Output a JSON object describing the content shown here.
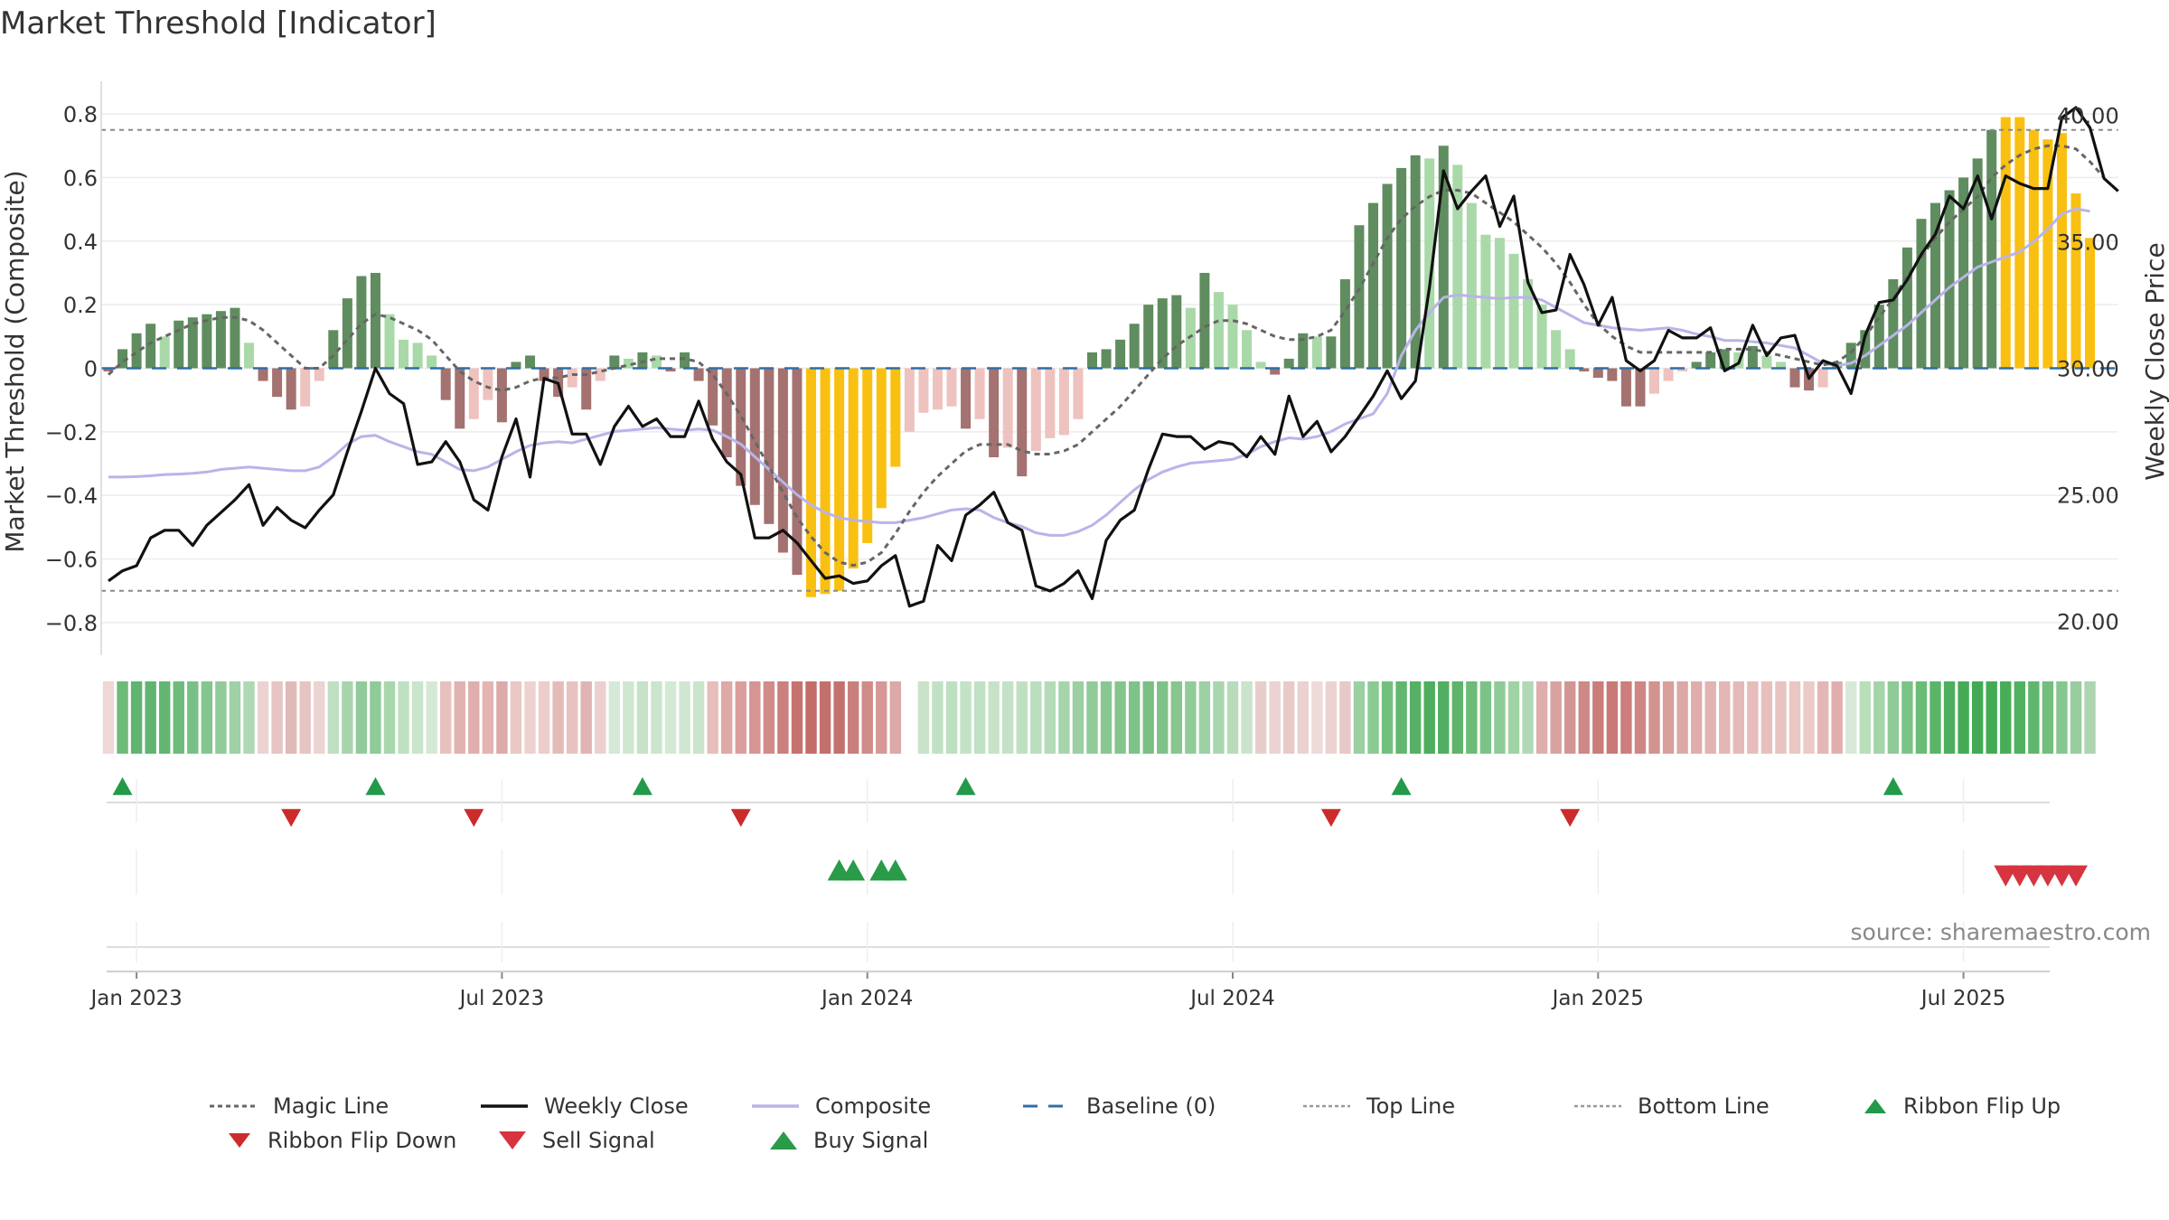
{
  "title": "Market Threshold [Indicator]",
  "source": "source: sharemaestro.com",
  "chart_data": {
    "type": "bar",
    "y_left_label": "Market Threshold (Composite)",
    "y_right_label": "Weekly Close Price",
    "y_left_range": [
      -0.86,
      0.86
    ],
    "y_right_range": [
      19.2,
      40.8
    ],
    "y_left_ticks": [
      {
        "v": 0.8,
        "label": "0.8"
      },
      {
        "v": 0.6,
        "label": "0.6"
      },
      {
        "v": 0.4,
        "label": "0.4"
      },
      {
        "v": 0.2,
        "label": "0.2"
      },
      {
        "v": 0,
        "label": "0"
      },
      {
        "v": -0.2,
        "label": "−0.2"
      },
      {
        "v": -0.4,
        "label": "−0.4"
      },
      {
        "v": -0.6,
        "label": "−0.6"
      },
      {
        "v": -0.8,
        "label": "−0.8"
      }
    ],
    "y_right_ticks": [
      {
        "v": 40,
        "label": "40.00"
      },
      {
        "v": 35,
        "label": "35.00"
      },
      {
        "v": 30,
        "label": "30.00"
      },
      {
        "v": 25,
        "label": "25.00"
      },
      {
        "v": 20,
        "label": "20.00"
      }
    ],
    "x_ticks": [
      "Jan 2023",
      "Jul 2023",
      "Jan 2024",
      "Jul 2024",
      "Jan 2025",
      "Jul 2025"
    ],
    "top_line": 0.75,
    "bottom_line": -0.7,
    "composite_histogram": [
      -0.01,
      0.06,
      0.11,
      0.14,
      0.1,
      0.15,
      0.16,
      0.17,
      0.18,
      0.19,
      0.08,
      -0.04,
      -0.09,
      -0.13,
      -0.12,
      -0.04,
      0.12,
      0.22,
      0.29,
      0.3,
      0.17,
      0.09,
      0.08,
      0.04,
      -0.1,
      -0.19,
      -0.16,
      -0.1,
      -0.17,
      0.02,
      0.04,
      -0.04,
      -0.09,
      -0.06,
      -0.13,
      -0.04,
      0.04,
      0.03,
      0.05,
      0.04,
      -0.01,
      0.05,
      -0.04,
      -0.18,
      -0.28,
      -0.37,
      -0.43,
      -0.49,
      -0.58,
      -0.65,
      -0.72,
      -0.71,
      -0.7,
      -0.63,
      -0.55,
      -0.44,
      -0.31,
      -0.2,
      -0.14,
      -0.13,
      -0.12,
      -0.19,
      -0.16,
      -0.28,
      -0.25,
      -0.34,
      -0.26,
      -0.22,
      -0.21,
      -0.16,
      0.05,
      0.06,
      0.09,
      0.14,
      0.2,
      0.22,
      0.23,
      0.19,
      0.3,
      0.24,
      0.2,
      0.12,
      0.02,
      -0.02,
      0.03,
      0.11,
      0.1,
      0.1,
      0.28,
      0.45,
      0.52,
      0.58,
      0.63,
      0.67,
      0.66,
      0.7,
      0.64,
      0.52,
      0.42,
      0.41,
      0.36,
      0.28,
      0.2,
      0.12,
      0.06,
      -0.01,
      -0.03,
      -0.04,
      -0.12,
      -0.12,
      -0.08,
      -0.04,
      -0.01,
      0.02,
      0.05,
      0.06,
      0.05,
      0.07,
      0.04,
      0.02,
      -0.06,
      -0.07,
      -0.06,
      0.02,
      0.08,
      0.12,
      0.2,
      0.28,
      0.38,
      0.47,
      0.52,
      0.56,
      0.6,
      0.66,
      0.75,
      0.79,
      0.79,
      0.75,
      0.72,
      0.74,
      0.55,
      0.41
    ],
    "histogram_colors": {
      "strong_positive": "#5f8d5f",
      "weak_positive": "#a9d9a8",
      "strong_negative": "#a47270",
      "weak_negative": "#eec2bf",
      "extreme": "#f9c011"
    },
    "extreme_bars": [
      50,
      51,
      52,
      53,
      54,
      55,
      56,
      135,
      136,
      137,
      138,
      139,
      140,
      141
    ],
    "magic_line": [
      -0.02,
      0.02,
      0.05,
      0.08,
      0.1,
      0.12,
      0.14,
      0.15,
      0.16,
      0.16,
      0.15,
      0.12,
      0.08,
      0.04,
      0.0,
      0.0,
      0.04,
      0.09,
      0.14,
      0.17,
      0.16,
      0.14,
      0.12,
      0.09,
      0.04,
      -0.01,
      -0.04,
      -0.06,
      -0.07,
      -0.06,
      -0.04,
      -0.03,
      -0.03,
      -0.02,
      -0.02,
      -0.01,
      0.0,
      0.01,
      0.02,
      0.03,
      0.03,
      0.03,
      0.02,
      -0.02,
      -0.08,
      -0.15,
      -0.23,
      -0.31,
      -0.39,
      -0.47,
      -0.53,
      -0.58,
      -0.61,
      -0.62,
      -0.61,
      -0.58,
      -0.52,
      -0.45,
      -0.39,
      -0.34,
      -0.3,
      -0.26,
      -0.24,
      -0.24,
      -0.24,
      -0.26,
      -0.27,
      -0.27,
      -0.26,
      -0.24,
      -0.2,
      -0.16,
      -0.12,
      -0.07,
      -0.02,
      0.03,
      0.07,
      0.1,
      0.13,
      0.15,
      0.15,
      0.14,
      0.12,
      0.1,
      0.09,
      0.09,
      0.1,
      0.12,
      0.18,
      0.25,
      0.33,
      0.41,
      0.47,
      0.51,
      0.54,
      0.56,
      0.56,
      0.55,
      0.52,
      0.49,
      0.46,
      0.42,
      0.38,
      0.33,
      0.27,
      0.2,
      0.14,
      0.1,
      0.07,
      0.05,
      0.05,
      0.05,
      0.05,
      0.05,
      0.05,
      0.06,
      0.06,
      0.06,
      0.05,
      0.04,
      0.03,
      0.02,
      0.01,
      0.02,
      0.05,
      0.1,
      0.16,
      0.22,
      0.29,
      0.35,
      0.41,
      0.46,
      0.5,
      0.54,
      0.6,
      0.64,
      0.67,
      0.69,
      0.7,
      0.7,
      0.69,
      0.65,
      0.6
    ],
    "composite_line": [
      25.7,
      25.7,
      25.72,
      25.75,
      25.8,
      25.82,
      25.85,
      25.9,
      26.0,
      26.05,
      26.1,
      26.05,
      26.0,
      25.95,
      25.95,
      26.1,
      26.5,
      27.0,
      27.3,
      27.35,
      27.1,
      26.9,
      26.7,
      26.6,
      26.3,
      26.0,
      25.95,
      26.1,
      26.4,
      26.7,
      26.95,
      27.05,
      27.1,
      27.05,
      27.2,
      27.35,
      27.5,
      27.55,
      27.6,
      27.65,
      27.6,
      27.55,
      27.6,
      27.55,
      27.3,
      27.0,
      26.5,
      26.0,
      25.5,
      25.0,
      24.6,
      24.3,
      24.1,
      24.0,
      23.95,
      23.9,
      23.9,
      24.0,
      24.1,
      24.25,
      24.4,
      24.45,
      24.4,
      24.1,
      23.9,
      23.75,
      23.5,
      23.4,
      23.4,
      23.55,
      23.8,
      24.2,
      24.7,
      25.2,
      25.6,
      25.9,
      26.1,
      26.25,
      26.3,
      26.35,
      26.4,
      26.6,
      26.9,
      27.1,
      27.25,
      27.2,
      27.3,
      27.5,
      27.8,
      28.0,
      28.2,
      29.0,
      30.5,
      31.5,
      32.2,
      32.8,
      32.9,
      32.85,
      32.8,
      32.75,
      32.8,
      32.8,
      32.7,
      32.4,
      32.1,
      31.8,
      31.7,
      31.6,
      31.55,
      31.5,
      31.55,
      31.6,
      31.5,
      31.35,
      31.25,
      31.1,
      31.1,
      31.05,
      31.0,
      30.9,
      30.8,
      30.5,
      30.2,
      30.1,
      30.2,
      30.5,
      30.9,
      31.3,
      31.7,
      32.2,
      32.7,
      33.2,
      33.6,
      34.0,
      34.2,
      34.4,
      34.6,
      35.0,
      35.5,
      36.1,
      36.3,
      36.2
    ],
    "weekly_close": [
      21.6,
      22.0,
      22.2,
      23.3,
      23.6,
      23.6,
      23.0,
      23.8,
      24.3,
      24.8,
      25.4,
      23.8,
      24.5,
      24.0,
      23.7,
      24.4,
      25.0,
      26.7,
      28.3,
      30.0,
      29.0,
      28.6,
      26.2,
      26.3,
      27.1,
      26.3,
      24.8,
      24.4,
      26.5,
      28.0,
      25.7,
      29.6,
      29.4,
      27.4,
      27.4,
      26.2,
      27.7,
      28.5,
      27.7,
      28.0,
      27.3,
      27.3,
      28.7,
      27.2,
      26.3,
      25.8,
      23.3,
      23.3,
      23.6,
      23.1,
      22.4,
      21.7,
      21.8,
      21.5,
      21.6,
      22.2,
      22.6,
      20.6,
      20.8,
      23.0,
      22.4,
      24.2,
      24.6,
      25.1,
      23.9,
      23.6,
      21.4,
      21.2,
      21.5,
      22.0,
      20.9,
      23.2,
      24.0,
      24.4,
      26.0,
      27.4,
      27.3,
      27.3,
      26.8,
      27.1,
      27.0,
      26.5,
      27.3,
      26.6,
      28.9,
      27.3,
      27.9,
      26.7,
      27.3,
      28.1,
      28.9,
      29.9,
      28.8,
      29.5,
      33.2,
      37.8,
      36.3,
      37.0,
      37.6,
      35.6,
      36.8,
      33.4,
      32.2,
      32.3,
      34.5,
      33.3,
      31.7,
      32.8,
      30.3,
      29.9,
      30.3,
      31.5,
      31.2,
      31.2,
      31.6,
      29.9,
      30.2,
      31.7,
      30.5,
      31.2,
      31.3,
      29.6,
      30.3,
      30.1,
      29.0,
      31.3,
      32.6,
      32.7,
      33.5,
      34.5,
      35.3,
      36.8,
      36.3,
      37.6,
      35.9,
      37.6,
      37.3,
      37.1,
      37.1,
      39.9,
      40.3,
      39.5,
      37.5,
      37.0
    ],
    "ribbon_colors": [
      "#efd7d6",
      "#6fba79",
      "#61b470",
      "#60b46f",
      "#63b571",
      "#6ebb7b",
      "#78c085",
      "#84c68f",
      "#90cb99",
      "#9ed1a6",
      "#b0d8b4",
      "#ecd3d2",
      "#e7c5c4",
      "#e0bab8",
      "#e6c4c2",
      "#ecd4d2",
      "#bfe0c1",
      "#a8d5ad",
      "#92cb9b",
      "#8fca98",
      "#a8d6ad",
      "#bfe1c2",
      "#c9e5cb",
      "#d4e9d5",
      "#e7c1bf",
      "#e1b2b0",
      "#e0aeac",
      "#e3b4b3",
      "#dcaaa8",
      "#e9c8c6",
      "#edd2d0",
      "#eccdcb",
      "#e4bbb9",
      "#e7c2c0",
      "#e0b4b2",
      "#ecd0cf",
      "#d5e9d6",
      "#cfe7d0",
      "#c6e3c8",
      "#cbe5cd",
      "#d3e9d4",
      "#cfe7d1",
      "#cae5cc",
      "#e6bebc",
      "#dea9a7",
      "#da9f9d",
      "#d59593",
      "#d18b88",
      "#cc807d",
      "#c8726f",
      "#c46c68",
      "#c3706c",
      "#c4716e",
      "#c9807c",
      "#cf8b88",
      "#d59896",
      "#dca9a7",
      null,
      "#c8e3ca",
      "#c2e1c4",
      "#bde0c0",
      "#c4e2c6",
      "#c0e1c3",
      "#c6e3c8",
      "#c4e2c7",
      "#bfe0c1",
      "#bbdebe",
      "#b3dbb7",
      "#a6d5ab",
      "#9ccfa2",
      "#92cb99",
      "#89c791",
      "#84c58c",
      "#7ec288",
      "#7ac085",
      "#7ec288",
      "#87c68f",
      "#91cb99",
      "#9dd0a4",
      "#a9d6ae",
      "#b8dcbb",
      "#c9e4cb",
      "#e7cecc",
      "#ead3d2",
      "#e8cac8",
      "#ebd1cf",
      "#efdad9",
      "#ecd2d0",
      "#e7c9c7",
      "#9bd0a2",
      "#8acb93",
      "#73c07e",
      "#62b66f",
      "#57b165",
      "#4fad5e",
      "#52ae60",
      "#5eb46a",
      "#6cbb78",
      "#7dc387",
      "#8fcb97",
      "#a0d2a6",
      "#b1d9b5",
      "#ddaeac",
      "#d8a2a0",
      "#d29592",
      "#ce8886",
      "#ca7d7a",
      "#c97a77",
      "#cb7e7b",
      "#ce8784",
      "#d39390",
      "#d89f9d",
      "#dba8a6",
      "#dfaeac",
      "#e1b3b1",
      "#e3b7b5",
      "#e4bab8",
      "#e6bdbb",
      "#e7c0be",
      "#e8c3c1",
      "#eac6c4",
      "#ebcac8",
      "#e3b7b5",
      "#e0afad",
      "#d9e9d9",
      "#b8deba",
      "#a4d4a9",
      "#8fcb98",
      "#7cc386",
      "#6abc77",
      "#5ab569",
      "#4daf5d",
      "#45ab56",
      "#42aa54",
      "#44ab55",
      "#48ad59",
      "#52b161",
      "#60b66d",
      "#72be7d",
      "#86c68f",
      "#98cd9e",
      "#acd5b0"
    ],
    "ribbon_flip_up_weeks": [
      1,
      19,
      38,
      61,
      92,
      127
    ],
    "ribbon_flip_down_weeks": [
      13,
      26,
      45,
      87,
      104
    ],
    "buy_signal_weeks": [
      52,
      53,
      55,
      56
    ],
    "sell_signal_weeks": [
      135,
      136,
      137,
      138,
      139,
      140
    ],
    "x_tick_weeks": [
      2,
      28,
      54,
      80,
      106,
      132
    ],
    "n_weeks": 143,
    "legend": [
      "Magic Line",
      "Weekly Close",
      "Composite",
      "Baseline (0)",
      "Top Line",
      "Bottom Line",
      "Ribbon Flip Up",
      "Ribbon Flip Down",
      "Sell Signal",
      "Buy Signal"
    ],
    "colors": {
      "magic_line": "#666666",
      "weekly_close": "#111111",
      "composite": "#b9b4e8",
      "baseline": "#2e6fa8",
      "ribbon_flip_up": "#239a4a",
      "ribbon_flip_down": "#cc2b2b",
      "sell_signal": "#d6343f",
      "buy_signal": "#2a9b48"
    }
  }
}
